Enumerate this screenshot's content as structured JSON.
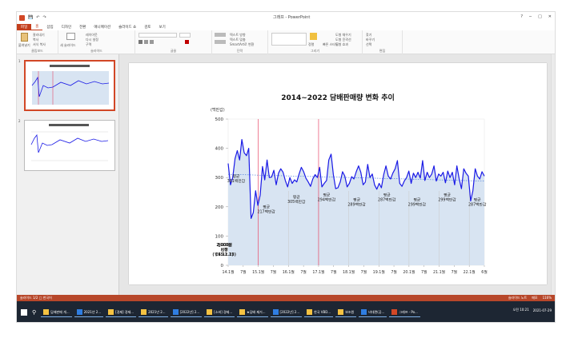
{
  "window": {
    "doc_title": "그래프 - PowerPoint",
    "qat_save": "💾",
    "qat_undo": "↶",
    "qat_redo": "↷",
    "help": "?",
    "minimize": "─",
    "maximize": "□",
    "close": "✕"
  },
  "tabs": [
    "파일",
    "홈",
    "삽입",
    "디자인",
    "전환",
    "애니메이션",
    "슬라이드 쇼",
    "검토",
    "보기"
  ],
  "ribbon": {
    "paste": "붙여넣기",
    "cut": "잘라내기",
    "copy": "복사",
    "format_painter": "서식 복사",
    "new_slide": "새 슬라이드",
    "layout": "레이아웃",
    "reset": "다시 설정",
    "section": "구역",
    "text_dir": "텍스트 방향",
    "align_text": "텍스트 맞춤",
    "smartart": "SmartArt로 변환",
    "arrange": "정렬",
    "quick_styles": "빠른 스타일",
    "shape_fill": "도형 채우기",
    "shape_outline": "도형 윤곽선",
    "shape_effects": "도형 효과",
    "find": "찾기",
    "replace": "바꾸기",
    "select": "선택",
    "groups": [
      "클립보드",
      "슬라이드",
      "글꼴",
      "단락",
      "그리기",
      "편집"
    ]
  },
  "slides": [
    "1",
    "2"
  ],
  "slide": {
    "title": "2014~2022 담배판매량 변화 추이"
  },
  "chart_data": {
    "type": "line",
    "title": "2014~2022 담배판매량 변화 추이",
    "ylabel": "(백만갑)",
    "ylim": [
      0,
      500
    ],
    "yticks": [
      0,
      100,
      200,
      300,
      400,
      500
    ],
    "xtick_labels": [
      "14.1월",
      "7월",
      "15.1월",
      "7월",
      "16.1월",
      "7월",
      "17.1월",
      "7월",
      "18.1월",
      "7월",
      "19.1월",
      "7월",
      "20.1월",
      "7월",
      "21.1월",
      "7월",
      "22.1월",
      "6월"
    ],
    "values": [
      348,
      275,
      300,
      365,
      392,
      360,
      430,
      385,
      375,
      400,
      160,
      180,
      255,
      205,
      240,
      338,
      292,
      360,
      300,
      302,
      325,
      275,
      315,
      330,
      318,
      290,
      268,
      300,
      280,
      292,
      285,
      312,
      335,
      320,
      298,
      285,
      270,
      295,
      310,
      300,
      335,
      268,
      280,
      290,
      360,
      380,
      310,
      262,
      265,
      285,
      320,
      305,
      268,
      280,
      303,
      295,
      320,
      340,
      318,
      275,
      285,
      345,
      300,
      312,
      275,
      260,
      280,
      265,
      310,
      340,
      305,
      295,
      315,
      330,
      358,
      280,
      270,
      288,
      300,
      322,
      280,
      315,
      300,
      318,
      298,
      358,
      290,
      318,
      300,
      312,
      340,
      288,
      312,
      305,
      318,
      282,
      322,
      300,
      318,
      275,
      340,
      295,
      262,
      330,
      315,
      305,
      220,
      255,
      330,
      305,
      295,
      320,
      305
    ],
    "reference_lines": [
      "2015.1",
      "2016.12"
    ],
    "area_fill": "#d8e4f2",
    "line_color": "#1a1ae6",
    "annotations": [
      {
        "text": "평균\n361백만갑",
        "at": "14.1월"
      },
      {
        "text": "평균\n217백만갑",
        "at": "15.1월"
      },
      {
        "text": "평균\n305백만갑",
        "at": "16.1월"
      },
      {
        "text": "평균\n294백만갑",
        "at": "17.1월"
      },
      {
        "text": "평균\n289백만갑",
        "at": "18.1월"
      },
      {
        "text": "평균\n287백만갑",
        "at": "19.1월"
      },
      {
        "text": "평균\n299백만갑",
        "at": "20.1월"
      },
      {
        "text": "평균\n299백만갑",
        "at": "21.1월"
      },
      {
        "text": "평균\n287백만갑",
        "at": "22.1월"
      },
      {
        "text": "2,000원\n인상\n('15.1.1)",
        "at": "14.7월"
      },
      {
        "text": "경고그림\n시행\n('16.12.23)",
        "at": "16.7월"
      }
    ]
  },
  "status": {
    "left": "슬라이드 1/2  □  한국어",
    "notes": "슬라이드 노트",
    "comments": "메모",
    "zoom": "116%"
  },
  "taskbar": {
    "items": [
      "담배판매 개...",
      "2021년 2...",
      "[경제] 경제...",
      "2021년 2...",
      "[2022년] 2...",
      "[소비] 경제...",
      "★담배 제거...",
      "[2022년] 2...",
      "한국 VBD...",
      "보조원",
      "비대면(공...",
      "그래프 - Po..."
    ],
    "time": "오전 10:21",
    "date": "2021-07-29"
  }
}
